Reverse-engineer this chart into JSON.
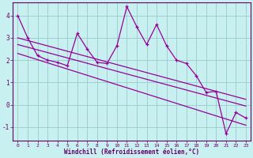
{
  "xlabel": "Windchill (Refroidissement éolien,°C)",
  "background_color": "#c8f0f0",
  "line_color": "#990099",
  "grid_color": "#99cccc",
  "xlim_min": -0.5,
  "xlim_max": 23.5,
  "ylim_min": -1.6,
  "ylim_max": 4.6,
  "x": [
    0,
    1,
    2,
    3,
    4,
    5,
    6,
    7,
    8,
    9,
    10,
    11,
    12,
    13,
    14,
    15,
    16,
    17,
    18,
    19,
    20,
    21,
    22,
    23
  ],
  "y_main": [
    4.0,
    3.0,
    2.2,
    2.0,
    1.9,
    1.75,
    3.2,
    2.5,
    1.9,
    1.85,
    2.65,
    4.4,
    3.5,
    2.7,
    3.6,
    2.65,
    2.0,
    1.85,
    1.3,
    0.55,
    0.6,
    -1.3,
    -0.35,
    -0.6
  ],
  "y_trend1": [
    3.0,
    2.88,
    2.76,
    2.64,
    2.52,
    2.4,
    2.28,
    2.16,
    2.04,
    1.92,
    1.8,
    1.68,
    1.56,
    1.44,
    1.32,
    1.2,
    1.08,
    0.96,
    0.84,
    0.72,
    0.6,
    0.48,
    0.36,
    0.24
  ],
  "y_trend2": [
    2.7,
    2.58,
    2.46,
    2.34,
    2.22,
    2.1,
    1.98,
    1.86,
    1.74,
    1.62,
    1.5,
    1.38,
    1.26,
    1.14,
    1.02,
    0.9,
    0.78,
    0.66,
    0.54,
    0.42,
    0.3,
    0.18,
    0.06,
    -0.06
  ],
  "y_trend3": [
    2.3,
    2.16,
    2.02,
    1.88,
    1.74,
    1.6,
    1.46,
    1.32,
    1.18,
    1.04,
    0.9,
    0.76,
    0.62,
    0.48,
    0.34,
    0.2,
    0.06,
    -0.08,
    -0.22,
    -0.36,
    -0.5,
    -0.64,
    -0.78,
    -0.92
  ],
  "yticks": [
    -1,
    0,
    1,
    2,
    3,
    4
  ],
  "xticks": [
    0,
    1,
    2,
    3,
    4,
    5,
    6,
    7,
    8,
    9,
    10,
    11,
    12,
    13,
    14,
    15,
    16,
    17,
    18,
    19,
    20,
    21,
    22,
    23
  ],
  "tick_color": "#660066",
  "spine_color": "#660066"
}
